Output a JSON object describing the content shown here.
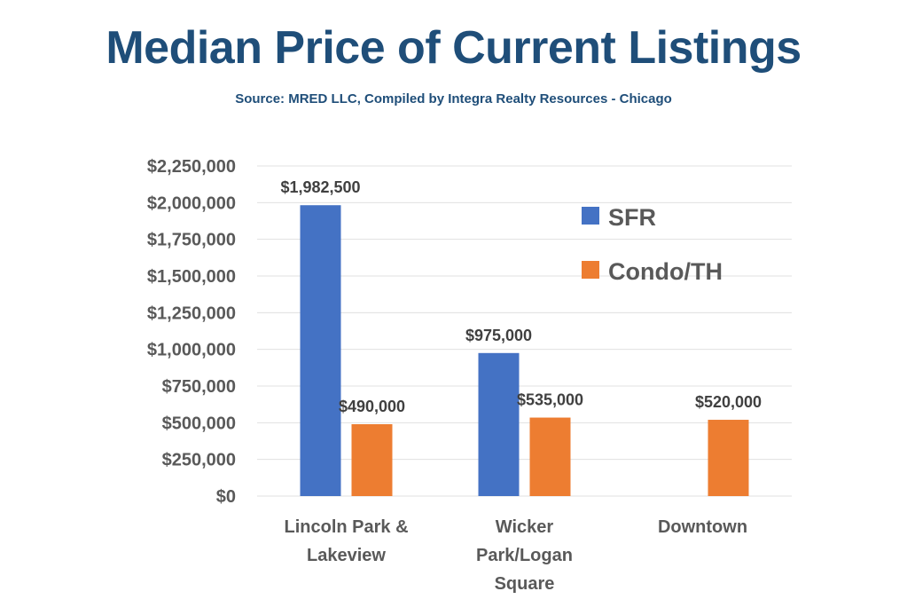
{
  "header": {
    "title": "Median Price of Current Listings",
    "subtitle": "Source: MRED LLC, Compiled by Integra Realty Resources - Chicago"
  },
  "chart_data": {
    "type": "bar",
    "title": "Median Price of Current Listings",
    "subtitle": "Source: MRED LLC, Compiled by Integra Realty Resources - Chicago",
    "categories": [
      [
        "Lincoln Park &",
        "Lakeview"
      ],
      [
        "Wicker",
        "Park/Logan",
        "Square"
      ],
      [
        "Downtown"
      ]
    ],
    "series": [
      {
        "name": "SFR",
        "color": "#4472c4",
        "values": [
          1982500,
          975000,
          null
        ],
        "labels": [
          "$1,982,500",
          "$975,000",
          ""
        ]
      },
      {
        "name": "Condo/TH",
        "color": "#ed7d31",
        "values": [
          490000,
          535000,
          520000
        ],
        "labels": [
          "$490,000",
          "$535,000",
          "$520,000"
        ]
      }
    ],
    "ylim": [
      0,
      2250000
    ],
    "yticks": [
      0,
      250000,
      500000,
      750000,
      1000000,
      1250000,
      1500000,
      1750000,
      2000000,
      2250000
    ],
    "ytick_labels": [
      "$0",
      "$250,000",
      "$500,000",
      "$750,000",
      "$1,000,000",
      "$1,250,000",
      "$1,500,000",
      "$1,750,000",
      "$2,000,000",
      "$2,250,000"
    ],
    "xlabel": "",
    "ylabel": "",
    "grid": true,
    "legend_position": "top-right"
  }
}
